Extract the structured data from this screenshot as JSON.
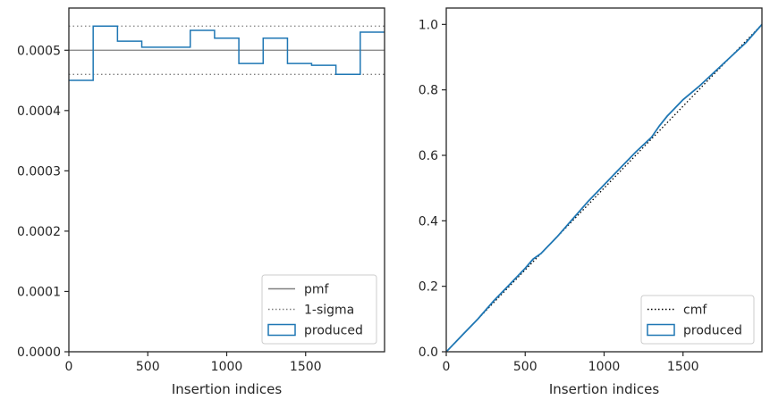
{
  "chart_data": [
    {
      "type": "step",
      "xlabel": "Insertion indices",
      "ylabel": "",
      "xlim": [
        0,
        2000
      ],
      "ylim": [
        0,
        0.00057
      ],
      "xticks": [
        0,
        500,
        1000,
        1500
      ],
      "xtick_labels": [
        "0",
        "500",
        "1000",
        "1500"
      ],
      "yticks": [
        0,
        0.0001,
        0.0002,
        0.0003,
        0.0004,
        0.0005
      ],
      "ytick_labels": [
        "0.0000",
        "0.0001",
        "0.0002",
        "0.0003",
        "0.0004",
        "0.0005"
      ],
      "legend_position": "lower-right",
      "lines": [
        {
          "name": "pmf",
          "value": 0.0005,
          "color": "#808080",
          "style": "solid"
        },
        {
          "name": "1-sigma",
          "value": 0.00054,
          "color": "#808080",
          "style": "dotted"
        },
        {
          "name": "1-sigma",
          "value": 0.00046,
          "color": "#808080",
          "style": "dotted"
        }
      ],
      "legend": [
        "pmf",
        "1-sigma",
        "produced"
      ],
      "series": [
        {
          "name": "produced",
          "color": "#1f77b4",
          "bin_edges": [
            0,
            154,
            308,
            462,
            615,
            769,
            923,
            1077,
            1231,
            1385,
            1538,
            1692,
            1846,
            2000
          ],
          "values": [
            0.00045,
            0.00054,
            0.000515,
            0.000505,
            0.000505,
            0.000533,
            0.00052,
            0.000478,
            0.00052,
            0.000478,
            0.000475,
            0.00046,
            0.00053
          ]
        }
      ]
    },
    {
      "type": "line",
      "xlabel": "Insertion indices",
      "ylabel": "",
      "xlim": [
        0,
        2000
      ],
      "ylim": [
        0,
        1.05
      ],
      "xticks": [
        0,
        500,
        1000,
        1500
      ],
      "xtick_labels": [
        "0",
        "500",
        "1000",
        "1500"
      ],
      "yticks": [
        0,
        0.2,
        0.4,
        0.6,
        0.8,
        1.0
      ],
      "ytick_labels": [
        "0.0",
        "0.2",
        "0.4",
        "0.6",
        "0.8",
        "1.0"
      ],
      "legend_position": "lower-right",
      "legend": [
        "cmf",
        "produced"
      ],
      "series": [
        {
          "name": "cmf",
          "color": "#000000",
          "style": "dotted",
          "x": [
            0,
            2000
          ],
          "y": [
            0,
            1
          ]
        },
        {
          "name": "produced",
          "color": "#1f77b4",
          "style": "solid",
          "x": [
            0,
            100,
            200,
            300,
            400,
            500,
            550,
            600,
            700,
            800,
            900,
            1000,
            1100,
            1200,
            1300,
            1350,
            1400,
            1500,
            1600,
            1700,
            1800,
            1900,
            2000
          ],
          "y": [
            0,
            0.05,
            0.1,
            0.155,
            0.205,
            0.255,
            0.283,
            0.3,
            0.35,
            0.405,
            0.46,
            0.51,
            0.56,
            0.61,
            0.655,
            0.69,
            0.72,
            0.77,
            0.81,
            0.855,
            0.9,
            0.945,
            1.0
          ]
        }
      ]
    }
  ]
}
